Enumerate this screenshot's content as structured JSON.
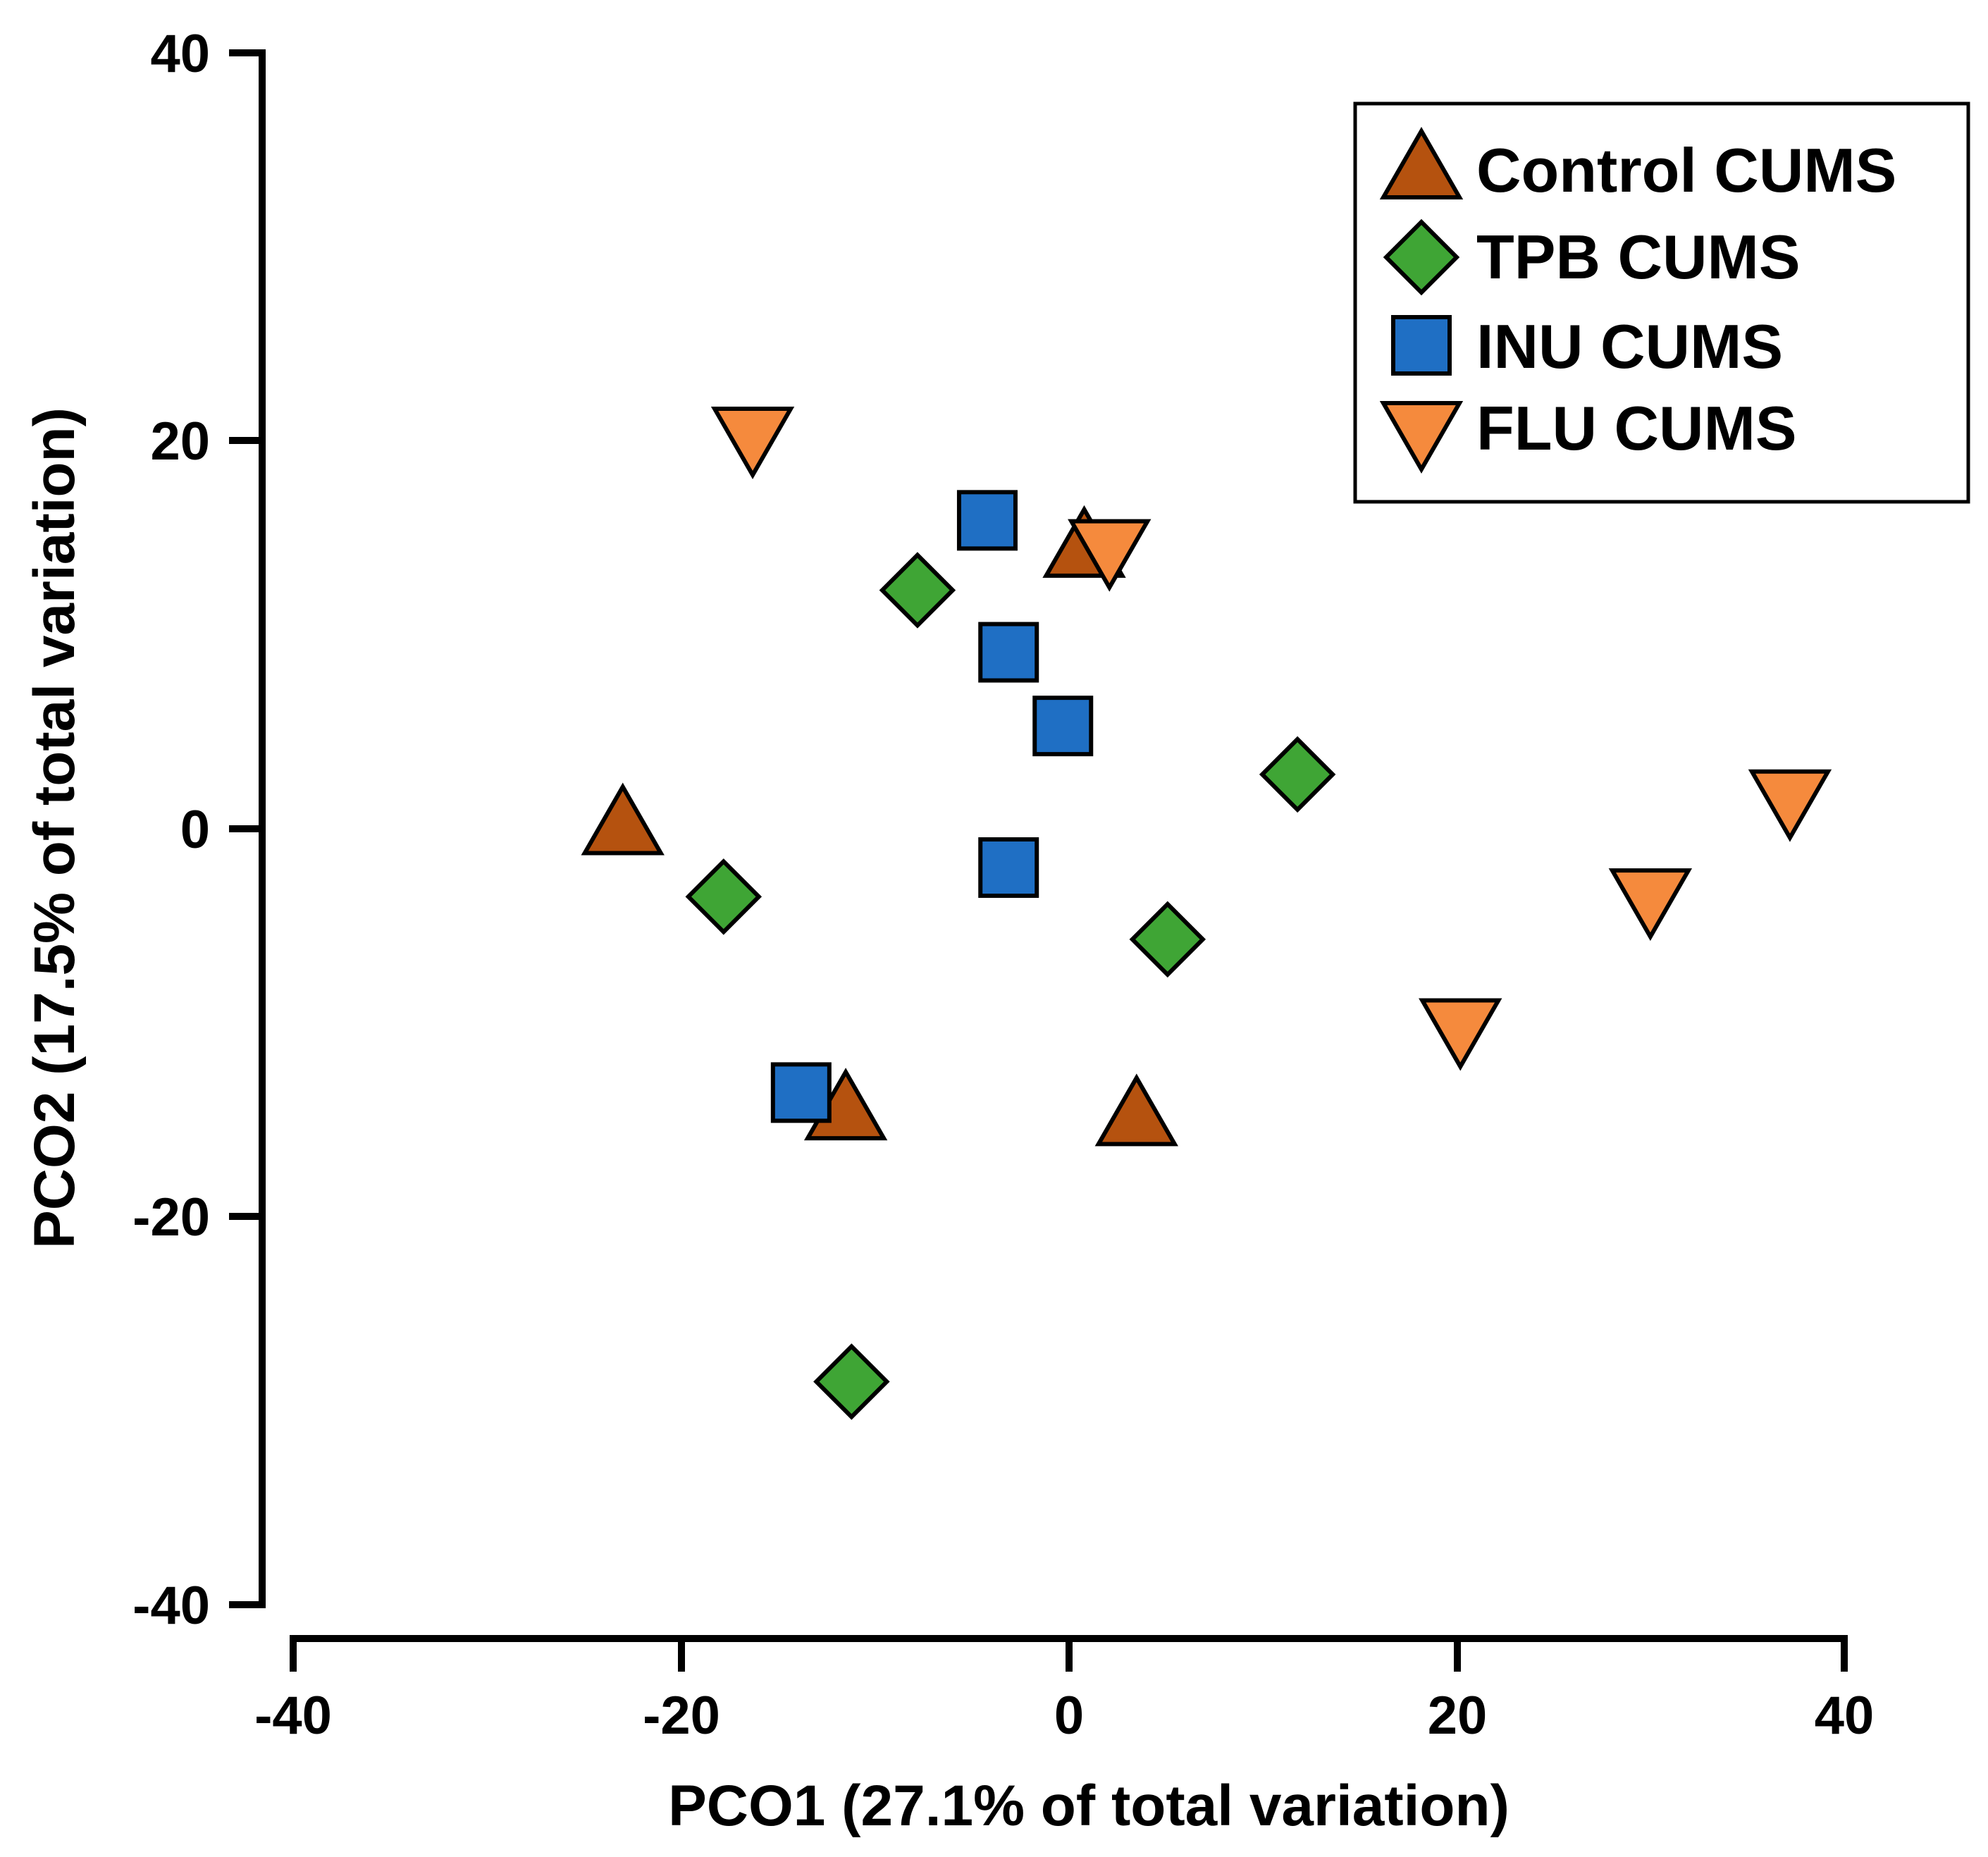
{
  "chart_data": {
    "type": "scatter",
    "title": "",
    "xlabel": "PCO1 (27.1% of total variation)",
    "ylabel": "PCO2 (17.5% of total variation)",
    "xlim": [
      -40,
      40
    ],
    "ylim": [
      -40,
      40
    ],
    "xticks": [
      -40,
      -20,
      0,
      20,
      40
    ],
    "yticks": [
      40,
      20,
      0,
      -20,
      -40
    ],
    "xtick_labels": [
      "-40",
      "-20",
      "0",
      "20",
      "40"
    ],
    "ytick_labels": [
      "40",
      "20",
      "0",
      "-20",
      "-40"
    ],
    "grid": false,
    "legend_position": "top-right",
    "series": [
      {
        "name": "Control CUMS",
        "marker": "triangle-up",
        "color": "#B5520F",
        "points": [
          {
            "x": -23,
            "y": 0.2
          },
          {
            "x": -11.5,
            "y": -14.5
          },
          {
            "x": 0.8,
            "y": 14.5
          },
          {
            "x": 3.5,
            "y": -14.8
          }
        ]
      },
      {
        "name": "TPB CUMS",
        "marker": "diamond",
        "color": "#3FA535",
        "points": [
          {
            "x": -17.8,
            "y": -3.5
          },
          {
            "x": -7.8,
            "y": 12.3
          },
          {
            "x": -11.2,
            "y": -28.5
          },
          {
            "x": 5.1,
            "y": -5.7
          },
          {
            "x": 11.8,
            "y": 2.8
          }
        ]
      },
      {
        "name": "INU CUMS",
        "marker": "square",
        "color": "#1F6FC4",
        "points": [
          {
            "x": -4.2,
            "y": 15.9
          },
          {
            "x": -3.1,
            "y": 9.1
          },
          {
            "x": -0.3,
            "y": 5.3
          },
          {
            "x": -3.1,
            "y": -2.0
          },
          {
            "x": -13.8,
            "y": -13.6
          }
        ]
      },
      {
        "name": "FLU CUMS",
        "marker": "triangle-down",
        "color": "#F58A3D",
        "points": [
          {
            "x": -16.3,
            "y": 20.2
          },
          {
            "x": 2.1,
            "y": 14.4
          },
          {
            "x": 37.2,
            "y": 1.5
          },
          {
            "x": 30.0,
            "y": -3.6
          },
          {
            "x": 20.2,
            "y": -10.3
          }
        ]
      }
    ]
  }
}
